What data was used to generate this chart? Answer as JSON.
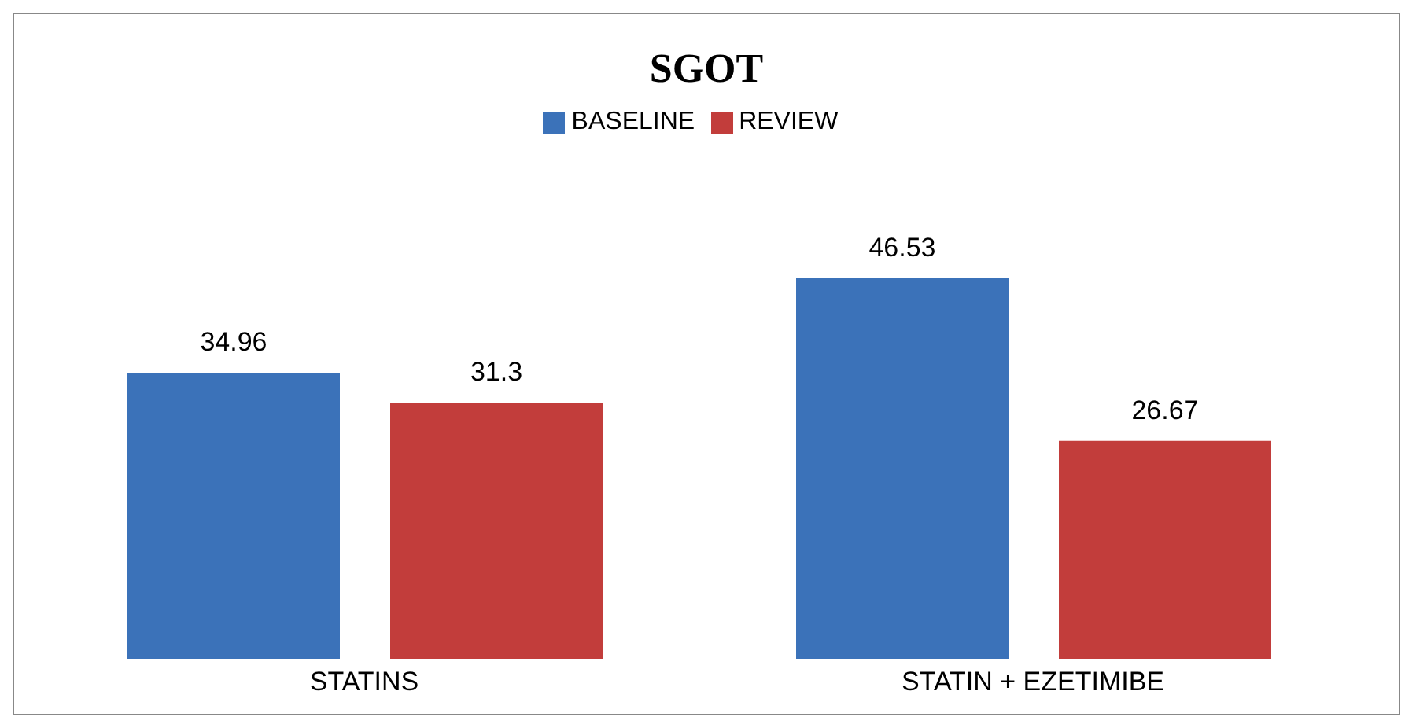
{
  "chart_data": {
    "type": "bar",
    "title": "SGOT",
    "categories": [
      "STATINS",
      "STATIN + EZETIMIBE"
    ],
    "series": [
      {
        "name": "BASELINE",
        "color": "#3b72b9",
        "values": [
          34.96,
          46.53
        ]
      },
      {
        "name": "REVIEW",
        "color": "#c23d3b",
        "values": [
          31.3,
          26.67
        ]
      }
    ],
    "data_labels": true,
    "legend": "top",
    "grid": false
  }
}
